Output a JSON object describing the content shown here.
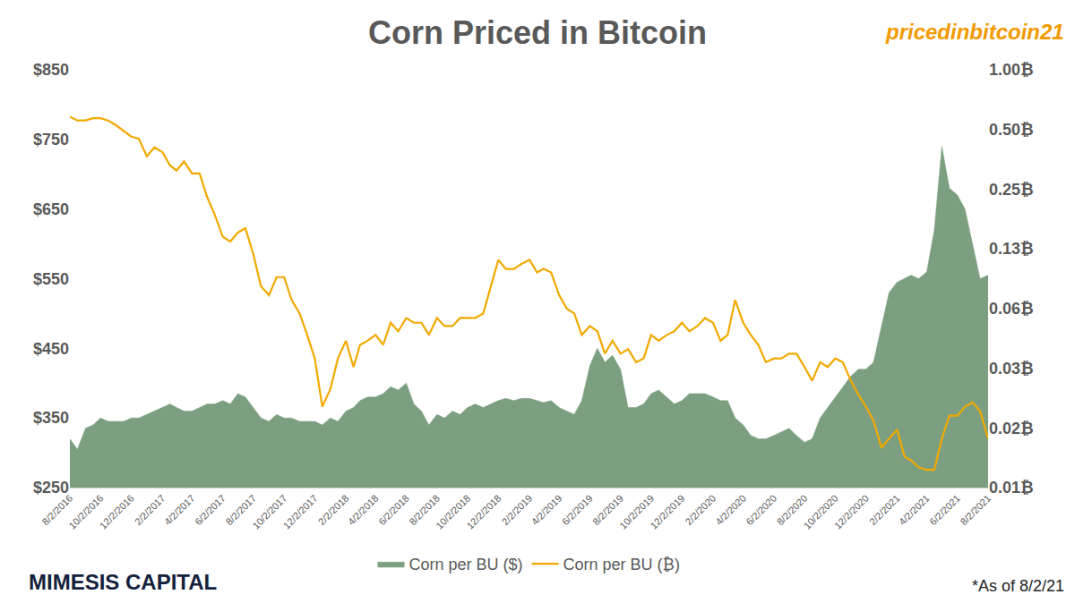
{
  "chart_data": {
    "type": "line",
    "title": "Corn Priced in Bitcoin",
    "annotations": [
      "pricedinbitcoin21",
      "MIMESIS CAPITAL",
      "*As of 8/2/21"
    ],
    "grid": false,
    "legend": "bottom",
    "log": "y2",
    "x": [
      "2016-08-02",
      "2016-08-17",
      "2016-09-02",
      "2016-09-17",
      "2016-10-02",
      "2016-10-17",
      "2016-11-02",
      "2016-11-17",
      "2016-12-02",
      "2016-12-17",
      "2017-01-02",
      "2017-01-17",
      "2017-02-02",
      "2017-02-17",
      "2017-03-02",
      "2017-03-17",
      "2017-04-02",
      "2017-04-17",
      "2017-05-02",
      "2017-05-17",
      "2017-06-02",
      "2017-06-17",
      "2017-07-02",
      "2017-07-17",
      "2017-08-02",
      "2017-08-17",
      "2017-09-02",
      "2017-09-17",
      "2017-10-02",
      "2017-10-17",
      "2017-11-02",
      "2017-11-17",
      "2017-12-02",
      "2017-12-17",
      "2018-01-02",
      "2018-01-17",
      "2018-02-02",
      "2018-02-17",
      "2018-03-02",
      "2018-03-17",
      "2018-04-02",
      "2018-04-17",
      "2018-05-02",
      "2018-05-17",
      "2018-06-02",
      "2018-06-17",
      "2018-07-02",
      "2018-07-17",
      "2018-08-02",
      "2018-08-17",
      "2018-09-02",
      "2018-09-17",
      "2018-10-02",
      "2018-10-17",
      "2018-11-02",
      "2018-11-17",
      "2018-12-02",
      "2018-12-17",
      "2019-01-02",
      "2019-01-17",
      "2019-02-02",
      "2019-02-17",
      "2019-03-02",
      "2019-03-17",
      "2019-04-02",
      "2019-04-17",
      "2019-05-02",
      "2019-05-17",
      "2019-06-02",
      "2019-06-17",
      "2019-07-02",
      "2019-07-17",
      "2019-08-02",
      "2019-08-17",
      "2019-09-02",
      "2019-09-17",
      "2019-10-02",
      "2019-10-17",
      "2019-11-02",
      "2019-11-17",
      "2019-12-02",
      "2019-12-17",
      "2020-01-02",
      "2020-01-17",
      "2020-02-02",
      "2020-02-17",
      "2020-03-02",
      "2020-03-17",
      "2020-04-02",
      "2020-04-17",
      "2020-05-02",
      "2020-05-17",
      "2020-06-02",
      "2020-06-17",
      "2020-07-02",
      "2020-07-17",
      "2020-08-02",
      "2020-08-17",
      "2020-09-02",
      "2020-09-17",
      "2020-10-02",
      "2020-10-17",
      "2020-11-02",
      "2020-11-17",
      "2020-12-02",
      "2020-12-17",
      "2021-01-02",
      "2021-01-17",
      "2021-02-02",
      "2021-02-17",
      "2021-03-02",
      "2021-03-17",
      "2021-04-02",
      "2021-04-17",
      "2021-05-02",
      "2021-05-17",
      "2021-06-02",
      "2021-06-17",
      "2021-07-02",
      "2021-07-17",
      "2021-08-02"
    ],
    "xlim": [
      "2016-08-02",
      "2021-08-02"
    ],
    "xticks": [
      {
        "value": "2016-08-02",
        "label": "8/2/2016"
      },
      {
        "value": "2016-10-02",
        "label": "10/2/2016"
      },
      {
        "value": "2016-12-02",
        "label": "12/2/2016"
      },
      {
        "value": "2017-02-02",
        "label": "2/2/2017"
      },
      {
        "value": "2017-04-02",
        "label": "4/2/2017"
      },
      {
        "value": "2017-06-02",
        "label": "6/2/2017"
      },
      {
        "value": "2017-08-02",
        "label": "8/2/2017"
      },
      {
        "value": "2017-10-02",
        "label": "10/2/2017"
      },
      {
        "value": "2017-12-02",
        "label": "12/2/2017"
      },
      {
        "value": "2018-02-02",
        "label": "2/2/2018"
      },
      {
        "value": "2018-04-02",
        "label": "4/2/2018"
      },
      {
        "value": "2018-06-02",
        "label": "6/2/2018"
      },
      {
        "value": "2018-08-02",
        "label": "8/2/2018"
      },
      {
        "value": "2018-10-02",
        "label": "10/2/2018"
      },
      {
        "value": "2018-12-02",
        "label": "12/2/2018"
      },
      {
        "value": "2019-02-02",
        "label": "2/2/2019"
      },
      {
        "value": "2019-04-02",
        "label": "4/2/2019"
      },
      {
        "value": "2019-06-02",
        "label": "6/2/2019"
      },
      {
        "value": "2019-08-02",
        "label": "8/2/2019"
      },
      {
        "value": "2019-10-02",
        "label": "10/2/2019"
      },
      {
        "value": "2019-12-02",
        "label": "12/2/2019"
      },
      {
        "value": "2020-02-02",
        "label": "2/2/2020"
      },
      {
        "value": "2020-04-02",
        "label": "4/2/2020"
      },
      {
        "value": "2020-06-02",
        "label": "6/2/2020"
      },
      {
        "value": "2020-08-02",
        "label": "8/2/2020"
      },
      {
        "value": "2020-10-02",
        "label": "10/2/2020"
      },
      {
        "value": "2020-12-02",
        "label": "12/2/2020"
      },
      {
        "value": "2021-02-02",
        "label": "2/2/2021"
      },
      {
        "value": "2021-04-02",
        "label": "4/2/2021"
      },
      {
        "value": "2021-06-02",
        "label": "6/2/2021"
      },
      {
        "value": "2021-08-02",
        "label": "8/2/2021"
      }
    ],
    "ylim": [
      250,
      850
    ],
    "yticks": [
      {
        "value": 250,
        "label": "$250"
      },
      {
        "value": 350,
        "label": "$350"
      },
      {
        "value": 450,
        "label": "$450"
      },
      {
        "value": 550,
        "label": "$550"
      },
      {
        "value": 650,
        "label": "$650"
      },
      {
        "value": 750,
        "label": "$750"
      },
      {
        "value": 850,
        "label": "$850"
      }
    ],
    "y2lim": [
      0.0078125,
      1
    ],
    "y2ticks": [
      {
        "value": 0.0078125,
        "label": "0.01₿"
      },
      {
        "value": 0.015625,
        "label": "0.02₿"
      },
      {
        "value": 0.03125,
        "label": "0.03₿"
      },
      {
        "value": 0.0625,
        "label": "0.06₿"
      },
      {
        "value": 0.125,
        "label": "0.13₿"
      },
      {
        "value": 0.25,
        "label": "0.25₿"
      },
      {
        "value": 0.5,
        "label": "0.50₿"
      },
      {
        "value": 1,
        "label": "1.00₿"
      }
    ],
    "series": [
      {
        "name": "Corn per BU ($)",
        "type": "area",
        "color": "#7b9f80",
        "values": [
          320,
          305,
          335,
          340,
          350,
          345,
          345,
          345,
          350,
          350,
          355,
          360,
          365,
          370,
          365,
          360,
          360,
          365,
          370,
          370,
          375,
          370,
          385,
          380,
          365,
          350,
          345,
          355,
          350,
          350,
          345,
          345,
          345,
          340,
          350,
          345,
          360,
          365,
          375,
          380,
          380,
          385,
          395,
          390,
          400,
          370,
          360,
          340,
          355,
          350,
          360,
          355,
          365,
          370,
          365,
          370,
          375,
          378,
          375,
          378,
          378,
          375,
          372,
          375,
          365,
          360,
          355,
          375,
          425,
          450,
          430,
          440,
          420,
          365,
          365,
          370,
          385,
          390,
          380,
          370,
          375,
          385,
          385,
          385,
          380,
          375,
          375,
          350,
          340,
          325,
          320,
          320,
          325,
          330,
          335,
          325,
          315,
          320,
          350,
          365,
          380,
          395,
          410,
          420,
          420,
          430,
          480,
          530,
          545,
          550,
          555,
          550,
          560,
          620,
          740,
          680,
          670,
          650,
          600,
          550,
          555
        ]
      },
      {
        "name": "Corn per BU (₿)",
        "type": "line",
        "axis": "y2",
        "color": "#f2a900",
        "values": [
          0.58,
          0.555,
          0.555,
          0.57,
          0.57,
          0.555,
          0.525,
          0.49,
          0.46,
          0.45,
          0.366,
          0.406,
          0.384,
          0.33,
          0.31,
          0.345,
          0.3,
          0.3,
          0.228,
          0.186,
          0.144,
          0.136,
          0.151,
          0.159,
          0.117,
          0.081,
          0.073,
          0.09,
          0.09,
          0.069,
          0.059,
          0.046,
          0.035,
          0.02,
          0.0245,
          0.035,
          0.043,
          0.0317,
          0.041,
          0.043,
          0.046,
          0.041,
          0.053,
          0.048,
          0.056,
          0.053,
          0.053,
          0.046,
          0.056,
          0.051,
          0.051,
          0.056,
          0.056,
          0.056,
          0.059,
          0.081,
          0.11,
          0.099,
          0.099,
          0.105,
          0.11,
          0.095,
          0.099,
          0.095,
          0.073,
          0.0625,
          0.059,
          0.046,
          0.051,
          0.048,
          0.037,
          0.043,
          0.037,
          0.039,
          0.0335,
          0.035,
          0.046,
          0.043,
          0.046,
          0.048,
          0.053,
          0.048,
          0.051,
          0.056,
          0.053,
          0.043,
          0.046,
          0.069,
          0.053,
          0.046,
          0.041,
          0.0335,
          0.035,
          0.035,
          0.037,
          0.037,
          0.0317,
          0.027,
          0.0335,
          0.0317,
          0.035,
          0.0335,
          0.027,
          0.023,
          0.02,
          0.017,
          0.0124,
          0.0138,
          0.0153,
          0.0112,
          0.0107,
          0.0099,
          0.0096,
          0.0096,
          0.0138,
          0.018,
          0.018,
          0.02,
          0.021,
          0.019,
          0.0138
        ]
      }
    ]
  }
}
